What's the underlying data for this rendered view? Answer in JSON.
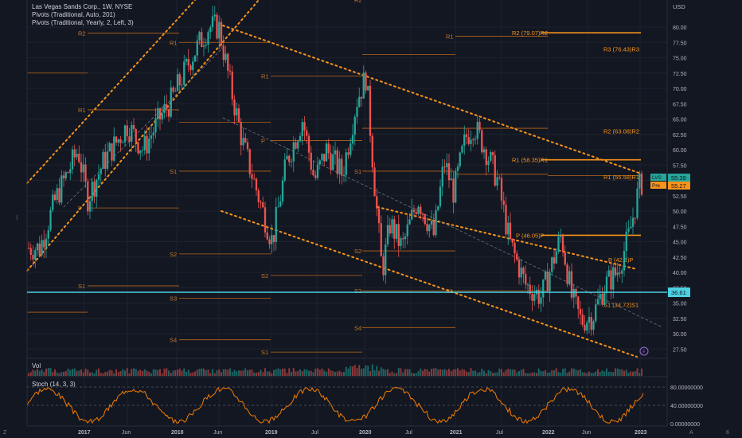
{
  "legend": {
    "symbol_line": "Las Vegas Sands Corp., 1W, NYSE",
    "pivots_auto": "Pivots (Traditional, Auto, 201)",
    "pivots_yearly": "Pivots (Traditional, Yearly, 2, Left, 3)"
  },
  "price_axis": {
    "currency": "USD",
    "ticks": [
      "80.00",
      "77.50",
      "75.00",
      "72.50",
      "70.00",
      "67.50",
      "65.00",
      "62.50",
      "60.00",
      "57.50",
      "55.00",
      "52.50",
      "50.00",
      "47.50",
      "45.00",
      "42.50",
      "40.00",
      "37.50",
      "35.00",
      "32.50",
      "30.00",
      "27.50"
    ],
    "last_label": "LVS",
    "last_value": "55.39",
    "pre_label": "Pre",
    "pre_value": "55.27",
    "hline_value": "36.61"
  },
  "time_axis": {
    "labels": [
      "2017",
      "Jun",
      "2018",
      "Jun",
      "2019",
      "Jul",
      "2020",
      "Jul",
      "2021",
      "Jul",
      "2022",
      "Jun",
      "2023"
    ]
  },
  "volume": {
    "label": "Vol"
  },
  "stoch": {
    "label": "Stoch (14, 3, 3)",
    "ticks": [
      "80.00000000",
      "40.00000000",
      "0.00000000"
    ]
  },
  "corner": {
    "left": "Z",
    "mid": "A",
    "right": "6"
  },
  "pivot_labels_gray": {
    "r2_2017": "R2",
    "r1_2017": "R1",
    "p_2017": "P",
    "s1_2017": "S1",
    "r1_2018": "R1",
    "s1_2018": "S1",
    "s2_2018": "S2",
    "s3_2018": "S3",
    "s4_2018": "S4",
    "r1_2019": "R1",
    "p_2019": "P",
    "s1_2019": "S1",
    "s2_2019": "S2",
    "r2_2020": "R2",
    "s1_2020": "S1",
    "s2_2020": "S2",
    "s3_2020": "S3",
    "s4_2020": "S4",
    "r1_2021": "R1",
    "s1_2021": "S1"
  },
  "pivot_labels_yearly": {
    "r2": "R2 (79.07)R2",
    "r3": "R3 (76.43)R3",
    "r2b": "R2 (63.08)R2",
    "r1a": "R1 (58.35)R1",
    "r1b": "R1 (55.58)R1",
    "p1": "P (46.05)P",
    "p2": "P (42.1)P",
    "s1": "S1 (34.72)S1"
  },
  "colors": {
    "background": "#131722",
    "up": "#26a69a",
    "down": "#ef5350",
    "pivot_orange": "#f7931a",
    "stoch_line": "#f57c00",
    "hline": "#4dd0e1"
  }
}
